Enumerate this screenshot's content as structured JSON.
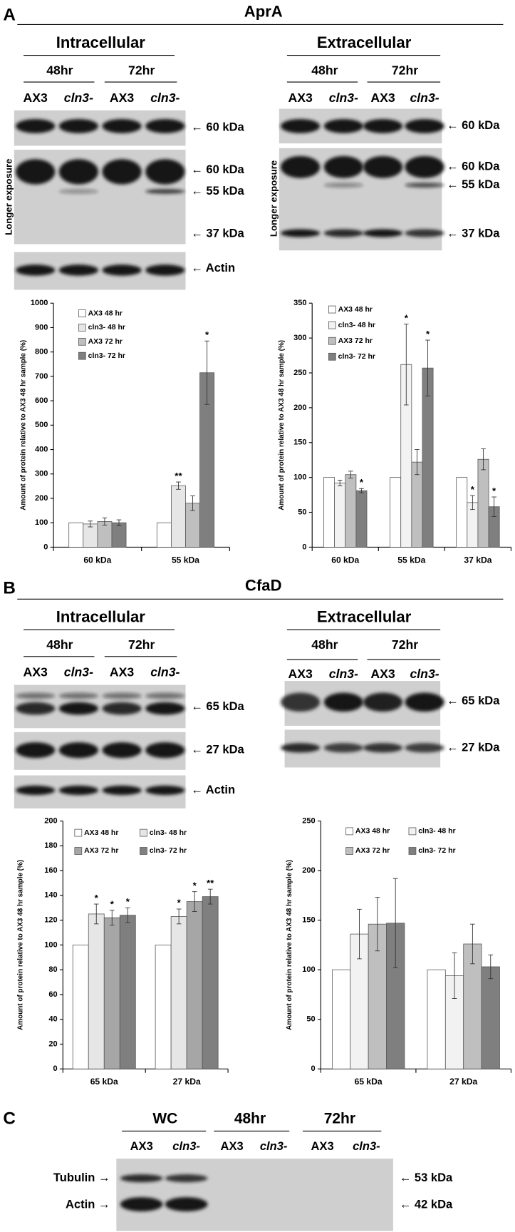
{
  "panels": [
    {
      "label": "A",
      "title": "AprA",
      "blot_groups": [
        {
          "title": "Intracellular",
          "timepoints": [
            "48hr",
            "72hr"
          ],
          "lanes": [
            "AX3",
            "cln3-",
            "AX3",
            "cln3-"
          ],
          "band_labels": [
            "← 60 kDa",
            "← 60 kDa",
            "← 55 kDa",
            "← 37 kDa",
            "← Actin"
          ],
          "side_label": "Longer exposure"
        },
        {
          "title": "Extracellular",
          "timepoints": [
            "48hr",
            "72hr"
          ],
          "lanes": [
            "AX3",
            "cln3-",
            "AX3",
            "cln3-"
          ],
          "band_labels": [
            "← 60 kDa",
            "← 60 kDa",
            "← 55 kDa",
            "← 37 kDa"
          ],
          "side_label": "Longer exposure"
        }
      ],
      "charts": [
        {
          "type": "bar",
          "y_label": "Amount of protein relative to AX3 48 hr sample (%)",
          "categories": [
            "60 kDa",
            "55 kDa"
          ],
          "ylim": [
            0,
            1000
          ],
          "yticks": [
            0,
            100,
            200,
            300,
            400,
            500,
            600,
            700,
            800,
            900,
            1000
          ],
          "series": [
            {
              "name": "AX3 48 hr",
              "color": "#ffffff",
              "values": [
                100,
                100
              ]
            },
            {
              "name": "cln3- 48 hr",
              "color": "#e6e6e6",
              "values": [
                95,
                252
              ],
              "errors": [
                12,
                15
              ],
              "significance": [
                null,
                "**"
              ]
            },
            {
              "name": "AX3 72 hr",
              "color": "#bfbfbf",
              "values": [
                105,
                180
              ],
              "errors": [
                15,
                30
              ]
            },
            {
              "name": "cln3- 72 hr",
              "color": "#7f7f7f",
              "values": [
                100,
                715
              ],
              "errors": [
                12,
                130
              ],
              "significance": [
                null,
                "*"
              ]
            }
          ]
        },
        {
          "type": "bar",
          "y_label": "Amount of protein relative to AX3 48 hr sample (%)",
          "categories": [
            "60 kDa",
            "55 kDa",
            "37 kDa"
          ],
          "ylim": [
            0,
            350
          ],
          "yticks": [
            0,
            50,
            100,
            150,
            200,
            250,
            300,
            350
          ],
          "series": [
            {
              "name": "AX3 48 hr",
              "color": "#ffffff",
              "values": [
                100,
                100,
                100
              ]
            },
            {
              "name": "cln3- 48 hr",
              "color": "#f2f2f2",
              "values": [
                92,
                262,
                64
              ],
              "errors": [
                4,
                58,
                10
              ],
              "significance": [
                null,
                "*",
                "*"
              ]
            },
            {
              "name": "AX3 72 hr",
              "color": "#bfbfbf",
              "values": [
                104,
                122,
                126
              ],
              "errors": [
                5,
                18,
                15
              ]
            },
            {
              "name": "cln3- 72 hr",
              "color": "#7f7f7f",
              "values": [
                81,
                257,
                58
              ],
              "errors": [
                3,
                40,
                14
              ],
              "significance": [
                "*",
                "*",
                "*"
              ]
            }
          ]
        }
      ]
    },
    {
      "label": "B",
      "title": "CfaD",
      "blot_groups": [
        {
          "title": "Intracellular",
          "timepoints": [
            "48hr",
            "72hr"
          ],
          "lanes": [
            "AX3",
            "cln3-",
            "AX3",
            "cln3-"
          ],
          "band_labels": [
            "← 65 kDa",
            "← 27 kDa",
            "← Actin"
          ]
        },
        {
          "title": "Extracellular",
          "timepoints": [
            "48hr",
            "72hr"
          ],
          "lanes": [
            "AX3",
            "cln3-",
            "AX3",
            "cln3-"
          ],
          "band_labels": [
            "← 65 kDa",
            "← 27 kDa"
          ]
        }
      ],
      "charts": [
        {
          "type": "bar",
          "y_label": "Amount of protein relative to AX3 48 hr sample (%)",
          "categories": [
            "65 kDa",
            "27 kDa"
          ],
          "ylim": [
            0,
            200
          ],
          "yticks": [
            0,
            20,
            40,
            60,
            80,
            100,
            120,
            140,
            160,
            180,
            200
          ],
          "series": [
            {
              "name": "AX3 48 hr",
              "color": "#ffffff",
              "values": [
                100,
                100
              ]
            },
            {
              "name": "cln3- 48 hr",
              "color": "#e6e6e6",
              "values": [
                125,
                123
              ],
              "errors": [
                8,
                6
              ],
              "significance": [
                "*",
                "*"
              ]
            },
            {
              "name": "AX3 72 hr",
              "color": "#a6a6a6",
              "values": [
                122,
                135
              ],
              "errors": [
                6,
                8
              ],
              "significance": [
                "*",
                "*"
              ]
            },
            {
              "name": "cln3- 72 hr",
              "color": "#7f7f7f",
              "values": [
                124,
                139
              ],
              "errors": [
                6,
                6
              ],
              "significance": [
                "*",
                "**"
              ]
            }
          ]
        },
        {
          "type": "bar",
          "y_label": "Amount of protein relative to AX3 48 hr sample (%)",
          "categories": [
            "65 kDa",
            "27 kDa"
          ],
          "ylim": [
            0,
            250
          ],
          "yticks": [
            0,
            50,
            100,
            150,
            200,
            250
          ],
          "series": [
            {
              "name": "AX3 48 hr",
              "color": "#ffffff",
              "values": [
                100,
                100
              ]
            },
            {
              "name": "cln3- 48 hr",
              "color": "#f2f2f2",
              "values": [
                136,
                94
              ],
              "errors": [
                25,
                23
              ]
            },
            {
              "name": "AX3 72 hr",
              "color": "#bfbfbf",
              "values": [
                146,
                126
              ],
              "errors": [
                27,
                20
              ]
            },
            {
              "name": "cln3- 72 hr",
              "color": "#7f7f7f",
              "values": [
                147,
                103
              ],
              "errors": [
                45,
                12
              ]
            }
          ]
        }
      ]
    }
  ],
  "panel_c": {
    "label": "C",
    "columns": [
      {
        "title": "WC",
        "lanes": [
          "AX3",
          "cln3-"
        ]
      },
      {
        "title": "48hr",
        "lanes": [
          "AX3",
          "cln3-"
        ]
      },
      {
        "title": "72hr",
        "lanes": [
          "AX3",
          "cln3-"
        ]
      }
    ],
    "row_labels": [
      "Tubulin →",
      "Actin →"
    ],
    "band_labels": [
      "← 53 kDa",
      "← 42 kDa"
    ]
  }
}
